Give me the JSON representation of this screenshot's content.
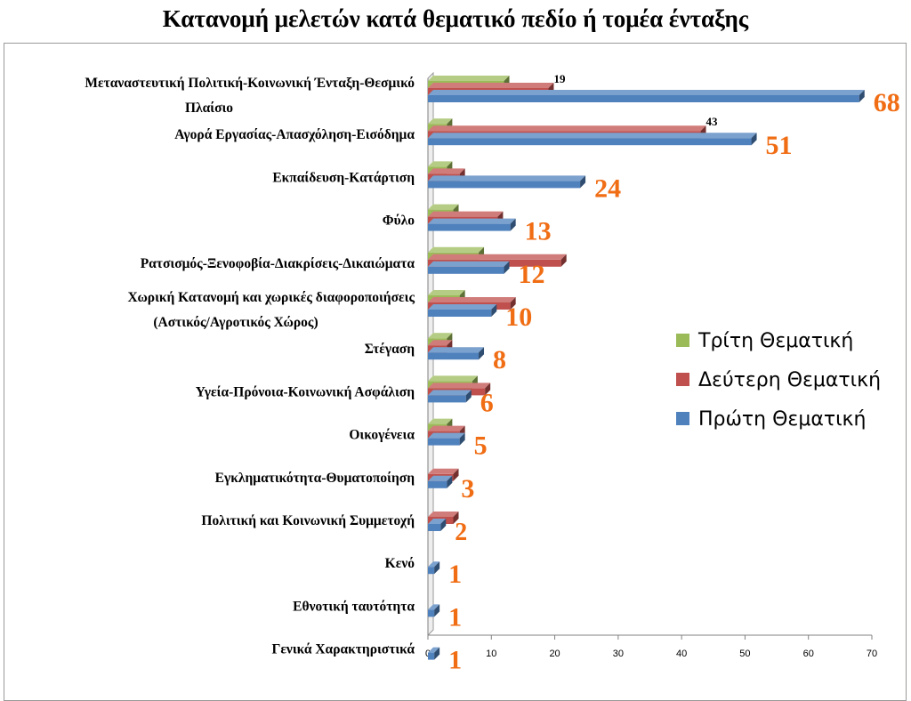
{
  "title": "Κατανομή μελετών κατά θεματικό πεδίο ή τομέα ένταξης",
  "chart_data": {
    "type": "bar",
    "orientation": "horizontal",
    "style": "3d-clustered",
    "title": "Κατανομή μελετών κατά θεματικό πεδίο ή τομέα ένταξης",
    "categories": [
      [
        "Μεταναστευτική Πολιτική-Κοινωνική Ένταξη-Θεσμικό",
        "Πλαίσιο"
      ],
      [
        "Αγορά Εργασίας-Απασχόληση-Εισόδημα"
      ],
      [
        "Εκπαίδευση-Κατάρτιση"
      ],
      [
        "Φύλο"
      ],
      [
        "Ρατσισμός-Ξενοφοβία-Διακρίσεις-Δικαιώματα"
      ],
      [
        "Χωρική Κατανομή και χωρικές διαφοροποιήσεις",
        "(Αστικός/Αγροτικός Χώρος)"
      ],
      [
        "Στέγαση"
      ],
      [
        "Υγεία-Πρόνοια-Κοινωνική Ασφάλιση"
      ],
      [
        "Οικογένεια"
      ],
      [
        "Εγκληματικότητα-Θυματοποίηση"
      ],
      [
        "Πολιτική και Κοινωνική Συμμετοχή"
      ],
      [
        "Κενό"
      ],
      [
        "Εθνοτική ταυτότητα"
      ],
      [
        "Γενικά Χαρακτηριστικά"
      ]
    ],
    "series": [
      {
        "name": "Τρίτη Θεματική",
        "color": "#9bbb59",
        "values": [
          12,
          3,
          3,
          4,
          8,
          5,
          3,
          7,
          3,
          0,
          0,
          0,
          0,
          0
        ]
      },
      {
        "name": "Δεύτερη Θεματική",
        "color": "#c0504d",
        "values": [
          19,
          43,
          5,
          11,
          21,
          13,
          3,
          9,
          5,
          4,
          4,
          0,
          0,
          0
        ]
      },
      {
        "name": "Πρώτη Θεματική",
        "color": "#4f81bd",
        "values": [
          68,
          51,
          24,
          13,
          12,
          10,
          8,
          6,
          5,
          3,
          2,
          1,
          1,
          1
        ]
      }
    ],
    "value_labels": [
      "68",
      "51",
      "24",
      "13",
      "12",
      "10",
      "8",
      "6",
      "5",
      "3",
      "2",
      "1",
      "1",
      "1"
    ],
    "small_labels": [
      {
        "category_index": 0,
        "text": "19"
      },
      {
        "category_index": 1,
        "text": "43"
      }
    ],
    "xlim": [
      0,
      70
    ],
    "xticks": [
      0,
      10,
      20,
      30,
      40,
      50,
      60,
      70
    ],
    "grid": false,
    "legend": {
      "position": "right",
      "items": [
        "Τρίτη Θεματική",
        "Δεύτερη Θεματική",
        "Πρώτη Θεματική"
      ]
    }
  }
}
